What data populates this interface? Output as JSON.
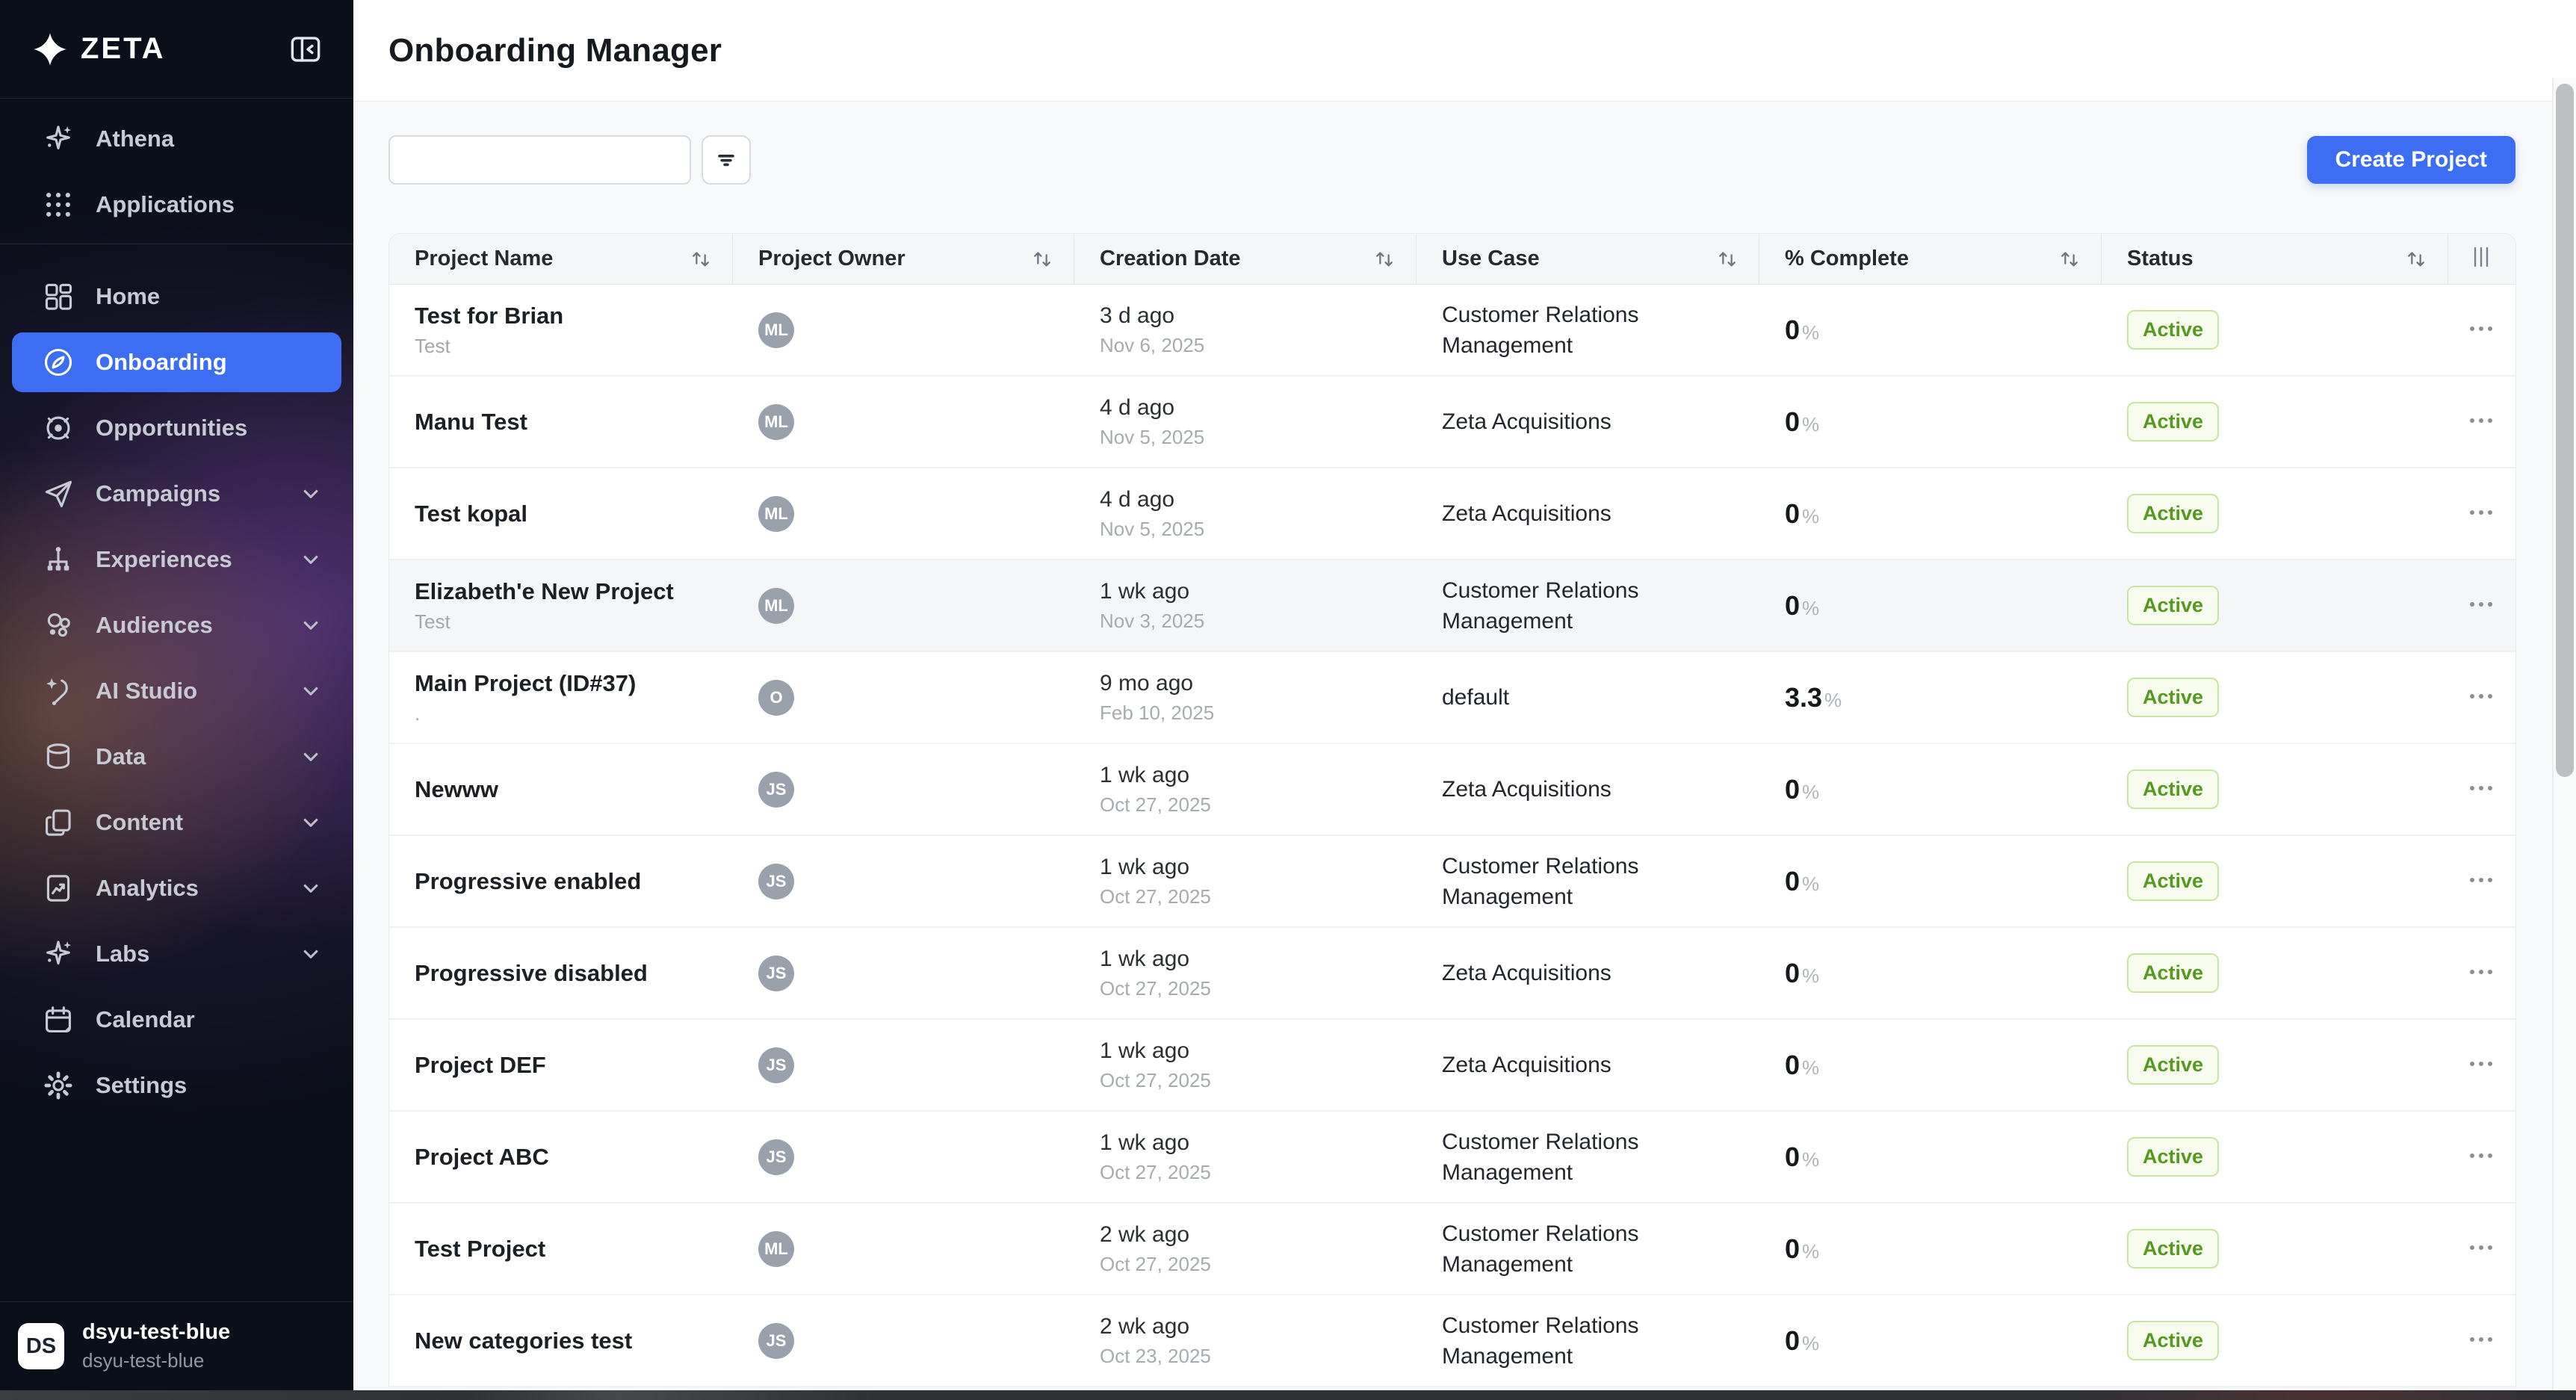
{
  "colors": {
    "accent": "#3d6df2",
    "sidebar_bg": "#0b0f19",
    "badge_bg": "#f7fcef",
    "badge_border": "#c9e6a1",
    "badge_text": "#55991f",
    "avatar_bg": "#98a1ac"
  },
  "sidebar": {
    "logo_text": "ZETA",
    "collapse_icon": "panel-collapse-icon",
    "top_items": [
      {
        "label": "Athena",
        "icon": "sparkle"
      },
      {
        "label": "Applications",
        "icon": "grid-dots"
      }
    ],
    "items": [
      {
        "label": "Home",
        "icon": "dashboard"
      },
      {
        "label": "Onboarding",
        "icon": "compass",
        "selected": true
      },
      {
        "label": "Opportunities",
        "icon": "target"
      },
      {
        "label": "Campaigns",
        "icon": "paper-plane",
        "chevron": true
      },
      {
        "label": "Experiences",
        "icon": "sitemap",
        "chevron": true
      },
      {
        "label": "Audiences",
        "icon": "bubbles",
        "chevron": true
      },
      {
        "label": "AI Studio",
        "icon": "wand",
        "chevron": true
      },
      {
        "label": "Data",
        "icon": "database",
        "chevron": true
      },
      {
        "label": "Content",
        "icon": "pages",
        "chevron": true
      },
      {
        "label": "Analytics",
        "icon": "report",
        "chevron": true
      },
      {
        "label": "Labs",
        "icon": "sparkle",
        "chevron": true
      },
      {
        "label": "Calendar",
        "icon": "calendar"
      },
      {
        "label": "Settings",
        "icon": "gear"
      }
    ],
    "user": {
      "initials": "DS",
      "name": "dsyu-test-blue",
      "org": "dsyu-test-blue"
    }
  },
  "header": {
    "title": "Onboarding Manager"
  },
  "toolbar": {
    "search_value": "",
    "search_placeholder": "",
    "create_button": "Create Project"
  },
  "table": {
    "columns": [
      "Project Name",
      "Project Owner",
      "Creation Date",
      "Use Case",
      "% Complete",
      "Status"
    ],
    "percent_suffix": "%",
    "rows": [
      {
        "name": "Test for Brian",
        "subtitle": "Test",
        "owner_initials": "ML",
        "date_rel": "3 d ago",
        "date_abs": "Nov 6, 2025",
        "use_case": "Customer Relations Management",
        "pct": "0",
        "status": "Active",
        "highlighted": false
      },
      {
        "name": "Manu Test",
        "subtitle": "",
        "owner_initials": "ML",
        "date_rel": "4 d ago",
        "date_abs": "Nov 5, 2025",
        "use_case": "Zeta Acquisitions",
        "pct": "0",
        "status": "Active",
        "highlighted": false
      },
      {
        "name": "Test kopal",
        "subtitle": "",
        "owner_initials": "ML",
        "date_rel": "4 d ago",
        "date_abs": "Nov 5, 2025",
        "use_case": "Zeta Acquisitions",
        "pct": "0",
        "status": "Active",
        "highlighted": false
      },
      {
        "name": "Elizabeth'e New Project",
        "subtitle": "Test",
        "owner_initials": "ML",
        "date_rel": "1 wk ago",
        "date_abs": "Nov 3, 2025",
        "use_case": "Customer Relations Management",
        "pct": "0",
        "status": "Active",
        "highlighted": true
      },
      {
        "name": "Main Project (ID#37)",
        "subtitle": ".",
        "owner_initials": "O",
        "date_rel": "9 mo ago",
        "date_abs": "Feb 10, 2025",
        "use_case": "default",
        "pct": "3.3",
        "status": "Active",
        "highlighted": false
      },
      {
        "name": "Newww",
        "subtitle": "",
        "owner_initials": "JS",
        "date_rel": "1 wk ago",
        "date_abs": "Oct 27, 2025",
        "use_case": "Zeta Acquisitions",
        "pct": "0",
        "status": "Active",
        "highlighted": false
      },
      {
        "name": "Progressive enabled",
        "subtitle": "",
        "owner_initials": "JS",
        "date_rel": "1 wk ago",
        "date_abs": "Oct 27, 2025",
        "use_case": "Customer Relations Management",
        "pct": "0",
        "status": "Active",
        "highlighted": false
      },
      {
        "name": "Progressive disabled",
        "subtitle": "",
        "owner_initials": "JS",
        "date_rel": "1 wk ago",
        "date_abs": "Oct 27, 2025",
        "use_case": "Zeta Acquisitions",
        "pct": "0",
        "status": "Active",
        "highlighted": false
      },
      {
        "name": "Project DEF",
        "subtitle": "",
        "owner_initials": "JS",
        "date_rel": "1 wk ago",
        "date_abs": "Oct 27, 2025",
        "use_case": "Zeta Acquisitions",
        "pct": "0",
        "status": "Active",
        "highlighted": false
      },
      {
        "name": "Project ABC",
        "subtitle": "",
        "owner_initials": "JS",
        "date_rel": "1 wk ago",
        "date_abs": "Oct 27, 2025",
        "use_case": "Customer Relations Management",
        "pct": "0",
        "status": "Active",
        "highlighted": false
      },
      {
        "name": "Test Project",
        "subtitle": "",
        "owner_initials": "ML",
        "date_rel": "2 wk ago",
        "date_abs": "Oct 27, 2025",
        "use_case": "Customer Relations Management",
        "pct": "0",
        "status": "Active",
        "highlighted": false
      },
      {
        "name": "New categories test",
        "subtitle": "",
        "owner_initials": "JS",
        "date_rel": "2 wk ago",
        "date_abs": "Oct 23, 2025",
        "use_case": "Customer Relations Management",
        "pct": "0",
        "status": "Active",
        "highlighted": false
      }
    ]
  }
}
